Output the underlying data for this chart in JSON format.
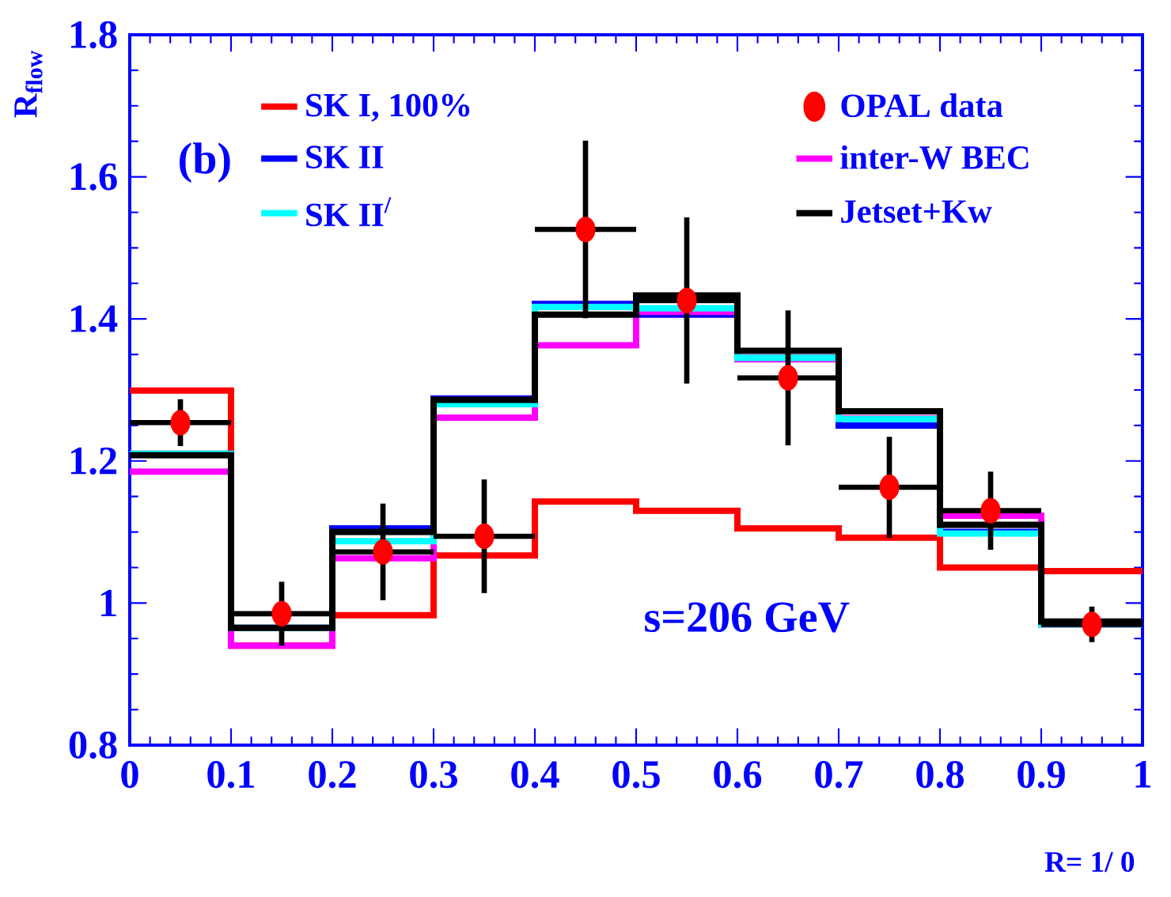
{
  "chart_data": {
    "type": "histogram",
    "ylabel": "R$_{flow}$",
    "xlabel": "R= 1/ 0",
    "annotations": [
      "(b)",
      "s=206 GeV"
    ],
    "bins": [
      0,
      0.1,
      0.2,
      0.3,
      0.4,
      0.5,
      0.6,
      0.7,
      0.8,
      0.9,
      1
    ],
    "series": [
      {
        "name": "SK I, 100%",
        "color": "#ff0000",
        "values": [
          1.299,
          0.94,
          0.983,
          1.067,
          1.143,
          1.13,
          1.105,
          1.092,
          1.05,
          1.045
        ]
      },
      {
        "name": "OPAL data",
        "type": "scatter",
        "color": "#ff0000",
        "x": [
          0.05,
          0.15,
          0.25,
          0.35,
          0.45,
          0.55,
          0.65,
          0.75,
          0.85,
          0.95
        ],
        "values": [
          1.254,
          0.985,
          1.072,
          1.094,
          1.526,
          1.426,
          1.317,
          1.163,
          1.13,
          0.97
        ],
        "errors": [
          0.033,
          0.045,
          0.068,
          0.08,
          0.125,
          0.117,
          0.095,
          0.071,
          0.055,
          0.025
        ],
        "xerrors": [
          0.05,
          0.05,
          0.05,
          0.05,
          0.05,
          0.05,
          0.05,
          0.05,
          0.05,
          0.05
        ]
      },
      {
        "name": "SK II",
        "color": "#0000ff",
        "values": [
          1.21,
          0.965,
          1.105,
          1.288,
          1.421,
          1.406,
          1.345,
          1.25,
          1.1,
          0.97
        ]
      },
      {
        "name": "inter-W BEC",
        "color": "#ff00ff",
        "values": [
          1.185,
          0.94,
          1.063,
          1.261,
          1.363,
          1.41,
          1.343,
          1.26,
          1.123,
          0.97
        ]
      },
      {
        "name": "SK II$^{/}$",
        "color": "#00ffff",
        "values": [
          1.21,
          0.965,
          1.087,
          1.28,
          1.417,
          1.415,
          1.345,
          1.259,
          1.098,
          0.97
        ]
      },
      {
        "name": "Jetset+Kw",
        "color": "#000000",
        "values": [
          1.208,
          0.965,
          1.1,
          1.286,
          1.406,
          1.433,
          1.355,
          1.27,
          1.11,
          0.974
        ]
      }
    ],
    "xlim": [
      0,
      1
    ],
    "ylim": [
      0.8,
      1.8
    ],
    "xticks": [
      0,
      0.1,
      0.2,
      0.3,
      0.4,
      0.5,
      0.6,
      0.7,
      0.8,
      0.9,
      1
    ],
    "yticks": [
      0.8,
      1,
      1.2,
      1.4,
      1.6,
      1.8
    ],
    "grid": false,
    "legend": "top",
    "marker": "circle"
  }
}
